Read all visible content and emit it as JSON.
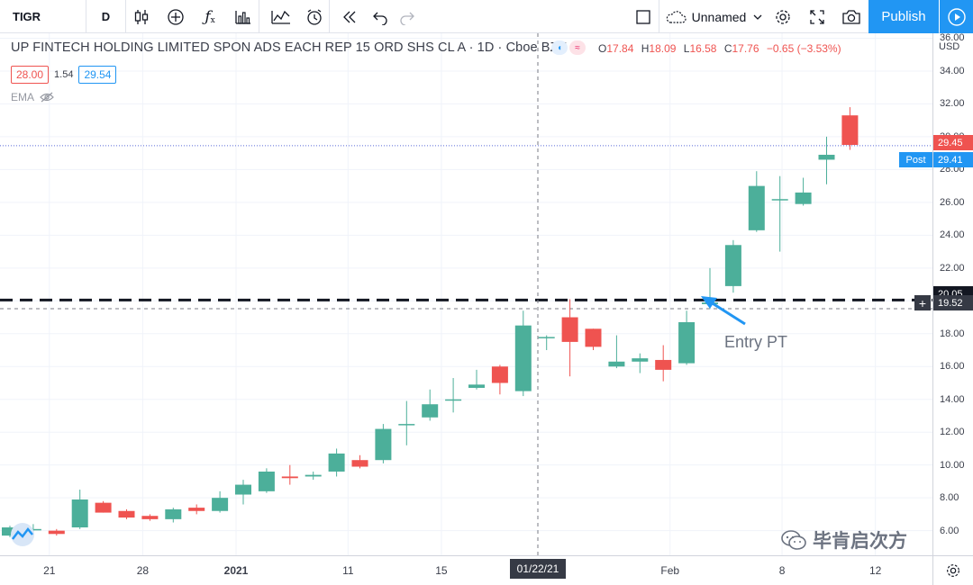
{
  "toolbar": {
    "symbol": "TIGR",
    "interval": "D",
    "layout_name": "Unnamed",
    "publish_label": "Publish",
    "icons": [
      "candles-icon",
      "add-indicator-icon",
      "fx-icon",
      "bar-compare-icon",
      "line-compare-icon",
      "alert-icon",
      "replay-icon",
      "undo-icon",
      "redo-icon",
      "fullscreen-square-icon",
      "cloud-icon",
      "chevron-down-icon",
      "gear-icon",
      "expand-icon",
      "camera-icon",
      "play-icon"
    ]
  },
  "legend": {
    "title": "UP FINTECH HOLDING LIMITED SPON ADS EACH REP 15 ORD SHS CL A · 1D · Cboe BZX",
    "o_key": "O",
    "o": "17.84",
    "h_key": "H",
    "h": "18.09",
    "l_key": "L",
    "l": "16.58",
    "c_key": "C",
    "c": "17.76",
    "change": "−0.65 (−3.53%)",
    "bid": "28.00",
    "spread": "1.54",
    "ask": "29.54",
    "ema_label": "EMA"
  },
  "price_axis": {
    "currency": "USD",
    "ticks": [
      "36.00",
      "34.00",
      "32.00",
      "30.00",
      "28.00",
      "26.00",
      "24.00",
      "22.00",
      "20.00",
      "18.00",
      "16.00",
      "14.00",
      "12.00",
      "10.00",
      "8.00",
      "6.00"
    ],
    "last_price": "29.45",
    "post_tag": "Post",
    "post_price": "29.41",
    "horizontal_line_price": "20.05",
    "crosshair_price": "19.52"
  },
  "time_axis": {
    "ticks": [
      {
        "label": "21",
        "bold": false
      },
      {
        "label": "28",
        "bold": false
      },
      {
        "label": "2021",
        "bold": true
      },
      {
        "label": "11",
        "bold": false
      },
      {
        "label": "15",
        "bold": false
      },
      {
        "label": "Feb",
        "bold": false
      },
      {
        "label": "8",
        "bold": false
      },
      {
        "label": "12",
        "bold": false
      }
    ],
    "crosshair_date": "01/22/21"
  },
  "annotations": {
    "entry_text": "Entry PT",
    "watermark": "毕肯启次方"
  },
  "colors": {
    "up": "#4caf9a",
    "down": "#ef5350",
    "accent": "#2196f3",
    "grid": "#f0f3fa",
    "text": "#131722"
  },
  "chart_data": {
    "type": "candlestick",
    "series": [
      {
        "name": "TIGR",
        "values": [
          {
            "o": 5.7,
            "h": 6.3,
            "l": 5.6,
            "c": 6.2
          },
          {
            "o": 6.1,
            "h": 6.4,
            "l": 5.8,
            "c": 6.1
          },
          {
            "o": 6.0,
            "h": 6.1,
            "l": 5.7,
            "c": 5.8
          },
          {
            "o": 6.2,
            "h": 8.5,
            "l": 6.1,
            "c": 7.9
          },
          {
            "o": 7.7,
            "h": 7.8,
            "l": 7.1,
            "c": 7.1
          },
          {
            "o": 7.2,
            "h": 7.3,
            "l": 6.7,
            "c": 6.8
          },
          {
            "o": 6.9,
            "h": 7.0,
            "l": 6.6,
            "c": 6.7
          },
          {
            "o": 6.7,
            "h": 7.4,
            "l": 6.5,
            "c": 7.3
          },
          {
            "o": 7.4,
            "h": 7.6,
            "l": 7.0,
            "c": 7.2
          },
          {
            "o": 7.2,
            "h": 8.4,
            "l": 7.1,
            "c": 8.0
          },
          {
            "o": 8.2,
            "h": 9.1,
            "l": 7.6,
            "c": 8.8
          },
          {
            "o": 8.4,
            "h": 9.8,
            "l": 8.3,
            "c": 9.6
          },
          {
            "o": 9.3,
            "h": 10.0,
            "l": 8.8,
            "c": 9.2
          },
          {
            "o": 9.3,
            "h": 9.6,
            "l": 9.1,
            "c": 9.4
          },
          {
            "o": 9.6,
            "h": 11.0,
            "l": 9.3,
            "c": 10.7
          },
          {
            "o": 10.3,
            "h": 10.6,
            "l": 9.8,
            "c": 9.9
          },
          {
            "o": 10.3,
            "h": 12.5,
            "l": 10.1,
            "c": 12.2
          },
          {
            "o": 12.5,
            "h": 13.9,
            "l": 11.2,
            "c": 12.5
          },
          {
            "o": 12.9,
            "h": 14.6,
            "l": 12.7,
            "c": 13.7
          },
          {
            "o": 14.0,
            "h": 15.3,
            "l": 13.2,
            "c": 14.0
          },
          {
            "o": 14.7,
            "h": 15.8,
            "l": 14.6,
            "c": 14.9
          },
          {
            "o": 16.0,
            "h": 16.1,
            "l": 14.3,
            "c": 15.0
          },
          {
            "o": 14.5,
            "h": 19.4,
            "l": 14.2,
            "c": 18.5
          },
          {
            "o": 17.8,
            "h": 17.9,
            "l": 17.0,
            "c": 17.8
          },
          {
            "o": 19.0,
            "h": 20.1,
            "l": 15.4,
            "c": 17.5
          },
          {
            "o": 18.3,
            "h": 18.3,
            "l": 17.0,
            "c": 17.2
          },
          {
            "o": 16.0,
            "h": 17.9,
            "l": 15.9,
            "c": 16.3
          },
          {
            "o": 16.3,
            "h": 16.8,
            "l": 15.6,
            "c": 16.5
          },
          {
            "o": 16.4,
            "h": 17.3,
            "l": 15.1,
            "c": 15.8
          },
          {
            "o": 16.2,
            "h": 19.4,
            "l": 16.1,
            "c": 18.7
          },
          {
            "o": 19.8,
            "h": 22.0,
            "l": 19.5,
            "c": 19.9
          },
          {
            "o": 20.9,
            "h": 23.7,
            "l": 20.5,
            "c": 23.4
          },
          {
            "o": 24.3,
            "h": 27.9,
            "l": 24.2,
            "c": 27.0
          },
          {
            "o": 26.2,
            "h": 27.6,
            "l": 23.0,
            "c": 26.2
          },
          {
            "o": 25.9,
            "h": 27.5,
            "l": 25.8,
            "c": 26.6
          },
          {
            "o": 28.6,
            "h": 30.0,
            "l": 27.1,
            "c": 28.9
          },
          {
            "o": 31.3,
            "h": 31.8,
            "l": 29.2,
            "c": 29.5
          }
        ]
      }
    ],
    "ylim": [
      4.5,
      36.3
    ],
    "horizontal_line": 20.05,
    "grid": true
  }
}
